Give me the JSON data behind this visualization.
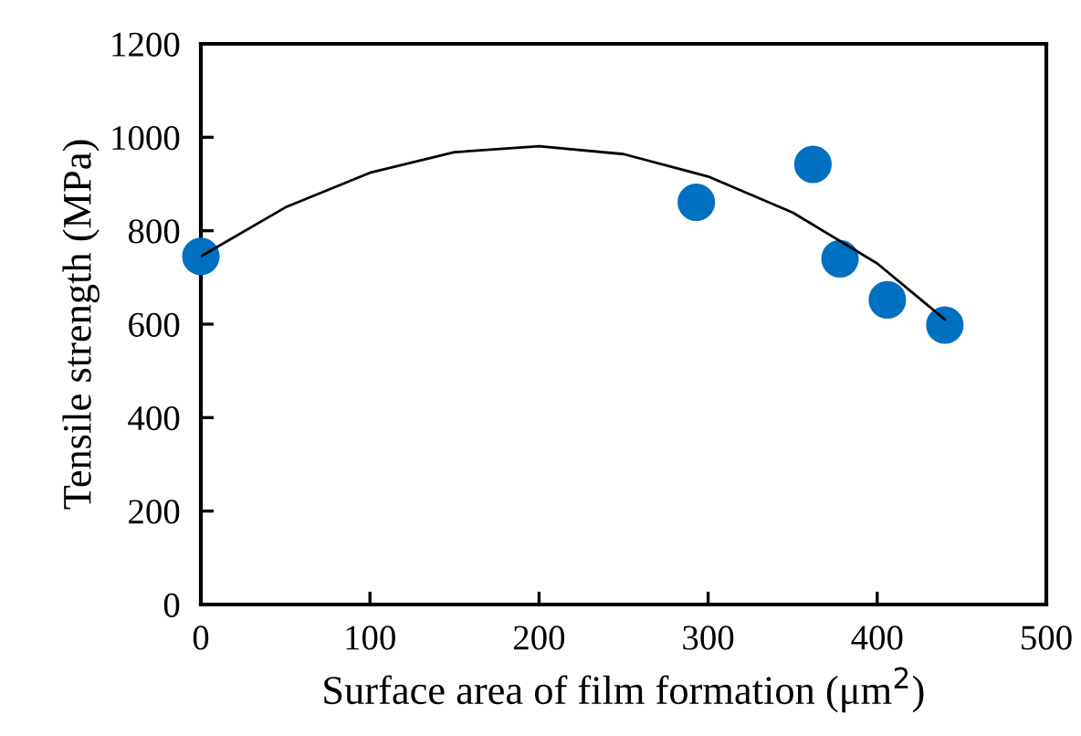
{
  "chart_data": {
    "type": "scatter",
    "xlabel": "Surface area of film formation (μm$^{2}$)",
    "ylabel": "Tensile strength (MPa)",
    "xlim": [
      0,
      500
    ],
    "xticks": [
      0,
      100,
      200,
      300,
      400,
      500
    ],
    "ylim": [
      0,
      1200
    ],
    "yticks": [
      0,
      200,
      400,
      600,
      800,
      1000,
      1200
    ],
    "grid": false,
    "marker": "circle",
    "series": [
      {
        "color": "#0070c0",
        "x": [
          0,
          293,
          362,
          378,
          406,
          440
        ],
        "values": [
          745,
          861,
          942,
          740,
          652,
          598
        ]
      },
      {
        "type": "line",
        "color": "#000000",
        "marker": "none",
        "x": [
          0,
          50,
          100,
          150,
          200,
          250,
          300,
          350,
          400,
          440
        ],
        "values": [
          745,
          850,
          924,
          968,
          981,
          964,
          916,
          839,
          730,
          610
        ]
      }
    ]
  }
}
